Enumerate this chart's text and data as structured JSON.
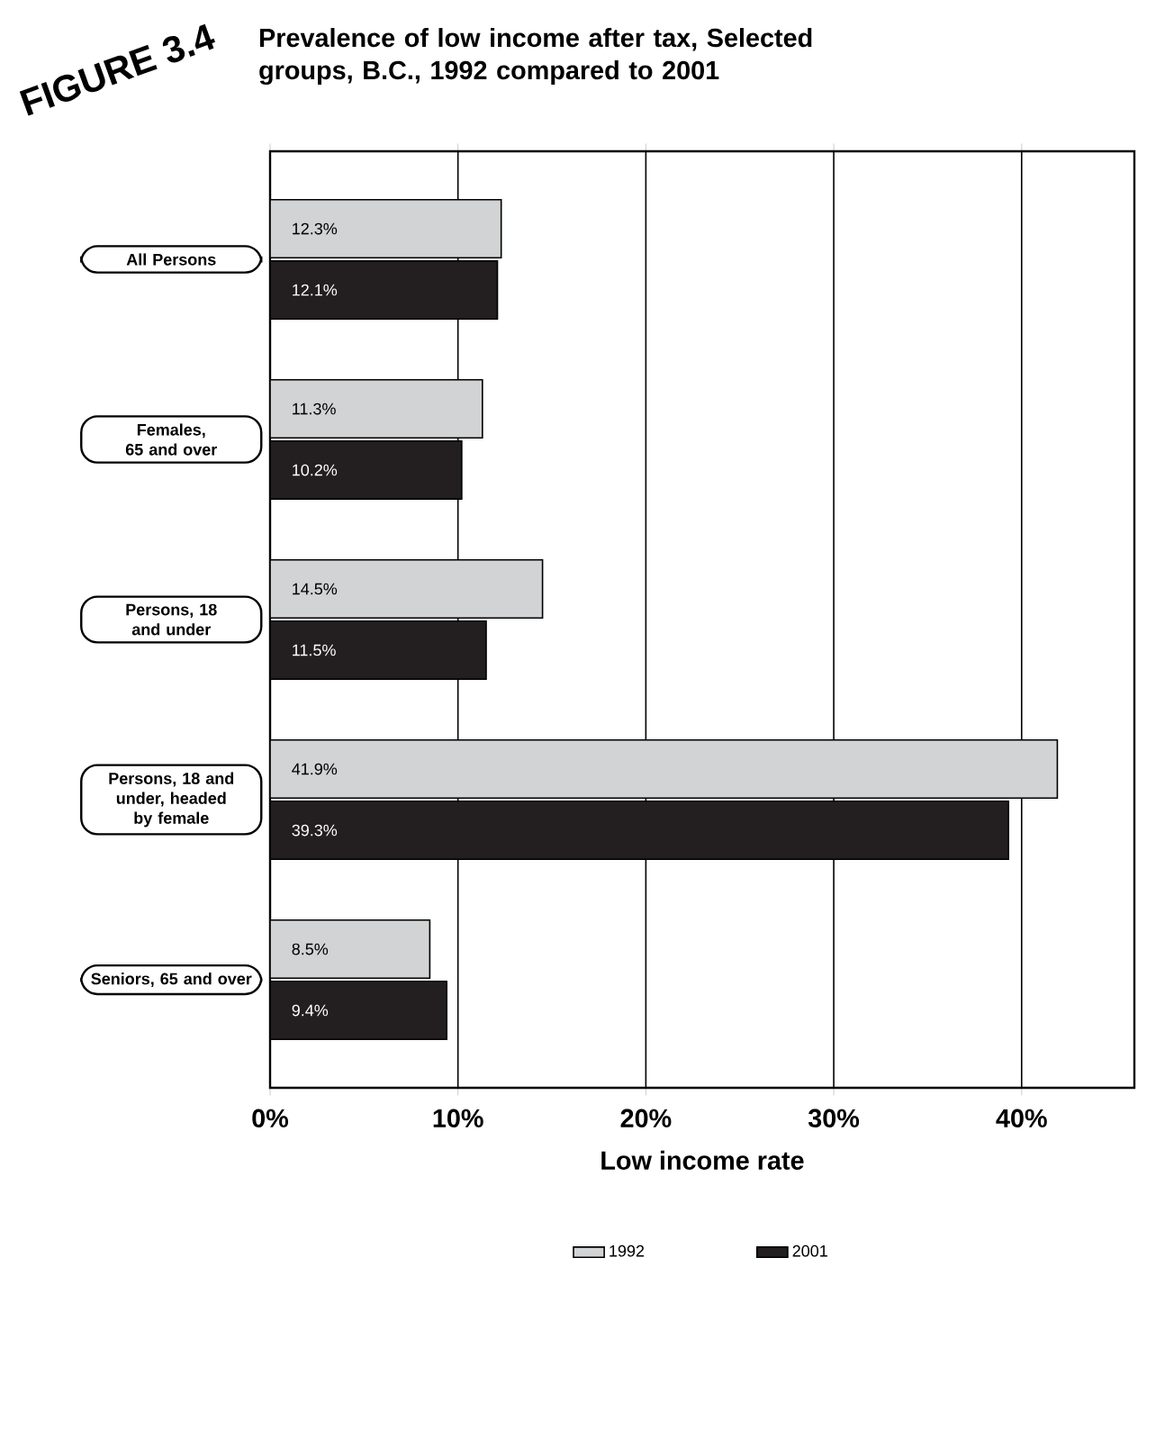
{
  "chart_data": {
    "type": "bar",
    "orientation": "horizontal",
    "title": "Prevalence of low income after tax, Selected groups, B.C., 1992 compared to 2001",
    "xlabel": "Low income rate",
    "annotations": [
      "FIGURE 3.4"
    ],
    "categories": [
      "All Persons",
      "Females, 65 and over",
      "Persons, 18 and under",
      "Persons, 18 and under, headed by female",
      "Seniors, 65 and over"
    ],
    "series": [
      {
        "name": "1992",
        "color": "#d1d3d4",
        "values": [
          12.3,
          11.3,
          14.5,
          41.9,
          8.5
        ],
        "value_labels": [
          "12.3%",
          "11.3%",
          "14.5%",
          "41.9%",
          "8.5%"
        ]
      },
      {
        "name": "2001",
        "color": "#231f20",
        "values": [
          12.1,
          10.2,
          11.5,
          39.3,
          9.4
        ],
        "value_labels": [
          "12.1%",
          "10.2%",
          "11.5%",
          "39.3%",
          "9.4%"
        ]
      }
    ],
    "xlim": [
      0,
      46
    ],
    "xticks": [
      {
        "value": 0,
        "label": "0%"
      },
      {
        "value": 10,
        "label": "10%"
      },
      {
        "value": 20,
        "label": "20%"
      },
      {
        "value": 30,
        "label": "30%"
      },
      {
        "value": 40,
        "label": "40%"
      }
    ],
    "grid": "x",
    "legend": "bottom"
  }
}
